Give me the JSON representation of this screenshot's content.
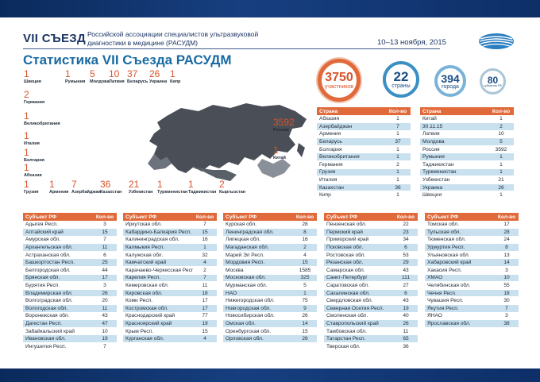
{
  "header": {
    "congress": "VII СЪЕЗД",
    "description": "Российской ассоциации специалистов ультразвуковой диагностики в медицине (РАСУДМ)",
    "dates": "10–13 ноября, 2015",
    "title": "Статистика VII Съезда РАСУДМ"
  },
  "summary": {
    "participants": {
      "value": "3750",
      "label": "участников"
    },
    "countries": {
      "value": "22",
      "label": "страны"
    },
    "cities": {
      "value": "394",
      "label": "города"
    },
    "regions": {
      "value": "80",
      "label": "субъектов РФ"
    }
  },
  "map_countries": [
    {
      "name": "Швеция",
      "count": "1"
    },
    {
      "name": "Румыния",
      "count": "1"
    },
    {
      "name": "Молдова",
      "count": "5"
    },
    {
      "name": "Латвия",
      "count": "10"
    },
    {
      "name": "Беларусь",
      "count": "37"
    },
    {
      "name": "Украина",
      "count": "26"
    },
    {
      "name": "Кипр",
      "count": "1"
    },
    {
      "name": "Германия",
      "count": "2"
    },
    {
      "name": "Великобритания",
      "count": "1"
    },
    {
      "name": "Италия",
      "count": "1"
    },
    {
      "name": "Болгария",
      "count": "1"
    },
    {
      "name": "Абхазия",
      "count": "1"
    },
    {
      "name": "Грузия",
      "count": "1"
    },
    {
      "name": "Армения",
      "count": "1"
    },
    {
      "name": "Азербайджан",
      "count": "7"
    },
    {
      "name": "Казахстан",
      "count": "36"
    },
    {
      "name": "Узбекистан",
      "count": "21"
    },
    {
      "name": "Туркменистан",
      "count": "1"
    },
    {
      "name": "Таджикистан",
      "count": "1"
    },
    {
      "name": "Кыргызстан",
      "count": "2"
    },
    {
      "name": "Россия",
      "count": "3592"
    },
    {
      "name": "Китай",
      "count": "1"
    }
  ],
  "country_tables": {
    "header_name": "Страна",
    "header_count": "Кол-во",
    "left": [
      [
        "Абхазия",
        "1"
      ],
      [
        "Азербайджан",
        "7"
      ],
      [
        "Армения",
        "1"
      ],
      [
        "Беларусь",
        "37"
      ],
      [
        "Болгария",
        "1"
      ],
      [
        "Великобритания",
        "1"
      ],
      [
        "Германия",
        "2"
      ],
      [
        "Грузия",
        "1"
      ],
      [
        "Италия",
        "1"
      ],
      [
        "Казахстан",
        "36"
      ],
      [
        "Кипр",
        "1"
      ]
    ],
    "right": [
      [
        "Китай",
        "1"
      ],
      [
        "30.11.15",
        "2"
      ],
      [
        "Латвия",
        "10"
      ],
      [
        "Молдова",
        "5"
      ],
      [
        "Россия",
        "3592"
      ],
      [
        "Румыния",
        "1"
      ],
      [
        "Таджикистан",
        "1"
      ],
      [
        "Туркменистан",
        "1"
      ],
      [
        "Узбекистан",
        "21"
      ],
      [
        "Украина",
        "26"
      ],
      [
        "Швеция",
        "1"
      ]
    ]
  },
  "region_tables": {
    "header_name": "Субъект РФ",
    "header_count": "Кол-во",
    "columns": [
      [
        [
          "Адыгея Респ.",
          "3"
        ],
        [
          "Алтайский край",
          "15"
        ],
        [
          "Амурская обл.",
          "7"
        ],
        [
          "Архангельская обл.",
          "11"
        ],
        [
          "Астраханская обл.",
          "6"
        ],
        [
          "Башкортостан Респ.",
          "25"
        ],
        [
          "Белгородская обл.",
          "44"
        ],
        [
          "Брянская обл.",
          "17"
        ],
        [
          "Бурятия Респ.",
          "3"
        ],
        [
          "Владимирская обл.",
          "26"
        ],
        [
          "Волгоградская обл.",
          "20"
        ],
        [
          "Вологодская обл.",
          "11"
        ],
        [
          "Воронежская обл.",
          "43"
        ],
        [
          "Дагестан Респ.",
          "47"
        ],
        [
          "Забайкальский край",
          "10"
        ],
        [
          "Ивановская обл.",
          "19"
        ],
        [
          "Ингушетия Респ.",
          "7"
        ]
      ],
      [
        [
          "Иркутская обл.",
          "7"
        ],
        [
          "Кабардино-Балкария Респ.",
          "15"
        ],
        [
          "Калининградская обл.",
          "16"
        ],
        [
          "Калмыкия Респ.",
          "1"
        ],
        [
          "Калужская обл.",
          "32"
        ],
        [
          "Камчатский край",
          "4"
        ],
        [
          "Карачаево-Черкесская Респ.",
          "2"
        ],
        [
          "Карелия Респ.",
          "7"
        ],
        [
          "Кемеровская обл.",
          "11"
        ],
        [
          "Кировская обл.",
          "18"
        ],
        [
          "Коми Респ.",
          "17"
        ],
        [
          "Костромская обл.",
          "17"
        ],
        [
          "Краснодарский край",
          "77"
        ],
        [
          "Красноярский край",
          "19"
        ],
        [
          "Крым Респ.",
          "15"
        ],
        [
          "Курганская обл.",
          "4"
        ]
      ],
      [
        [
          "Курская обл.",
          "28"
        ],
        [
          "Ленинградская обл.",
          "8"
        ],
        [
          "Липецкая обл.",
          "16"
        ],
        [
          "Магаданская обл.",
          "2"
        ],
        [
          "Марий Эл Респ.",
          "4"
        ],
        [
          "Мордовия Респ.",
          "15"
        ],
        [
          "Москва",
          "1585"
        ],
        [
          "Московская обл.",
          "325"
        ],
        [
          "Мурманская обл.",
          "5"
        ],
        [
          "НАО",
          "1"
        ],
        [
          "Нижегородская обл.",
          "75"
        ],
        [
          "Новгородская обл.",
          "9"
        ],
        [
          "Новосибирская обл.",
          "26"
        ],
        [
          "Омская обл.",
          "14"
        ],
        [
          "Оренбургская обл.",
          "15"
        ],
        [
          "Орловская обл.",
          "26"
        ]
      ],
      [
        [
          "Пензенская обл.",
          "22"
        ],
        [
          "Пермский край",
          "23"
        ],
        [
          "Приморский край",
          "34"
        ],
        [
          "Псковская обл.",
          "6"
        ],
        [
          "Ростовская обл.",
          "53"
        ],
        [
          "Рязанская обл.",
          "29"
        ],
        [
          "Самарская обл.",
          "43"
        ],
        [
          "Санкт-Петербург",
          "111"
        ],
        [
          "Саратовская обл.",
          "27"
        ],
        [
          "Сахалинская обл.",
          "6"
        ],
        [
          "Свердловская обл.",
          "43"
        ],
        [
          "Северная Осетия Респ.",
          "19"
        ],
        [
          "Смоленская обл.",
          "40"
        ],
        [
          "Ставропольский край",
          "26"
        ],
        [
          "Тамбовская обл.",
          "11"
        ],
        [
          "Татарстан Респ.",
          "65"
        ],
        [
          "Тверская обл.",
          "36"
        ]
      ],
      [
        [
          "Томская обл.",
          "17"
        ],
        [
          "Тульская обл.",
          "28"
        ],
        [
          "Тюменская обл.",
          "24"
        ],
        [
          "Удмуртия Респ.",
          "8"
        ],
        [
          "Ульяновская обл.",
          "13"
        ],
        [
          "Хабаровский край",
          "14"
        ],
        [
          "Хакасия Респ.",
          "3"
        ],
        [
          "ХМАО",
          "10"
        ],
        [
          "Челябинская обл.",
          "55"
        ],
        [
          "Чечня Респ.",
          "18"
        ],
        [
          "Чувашия Респ.",
          "30"
        ],
        [
          "Якутия Респ.",
          "7"
        ],
        [
          "ЯНАО",
          "3"
        ],
        [
          "Ярославская обл.",
          "38"
        ]
      ]
    ]
  },
  "colors": {
    "accent": "#e06a3a",
    "row_blue": "#c9e0ef",
    "title_blue": "#1a6aa3",
    "navy": "#0b2a5c"
  }
}
